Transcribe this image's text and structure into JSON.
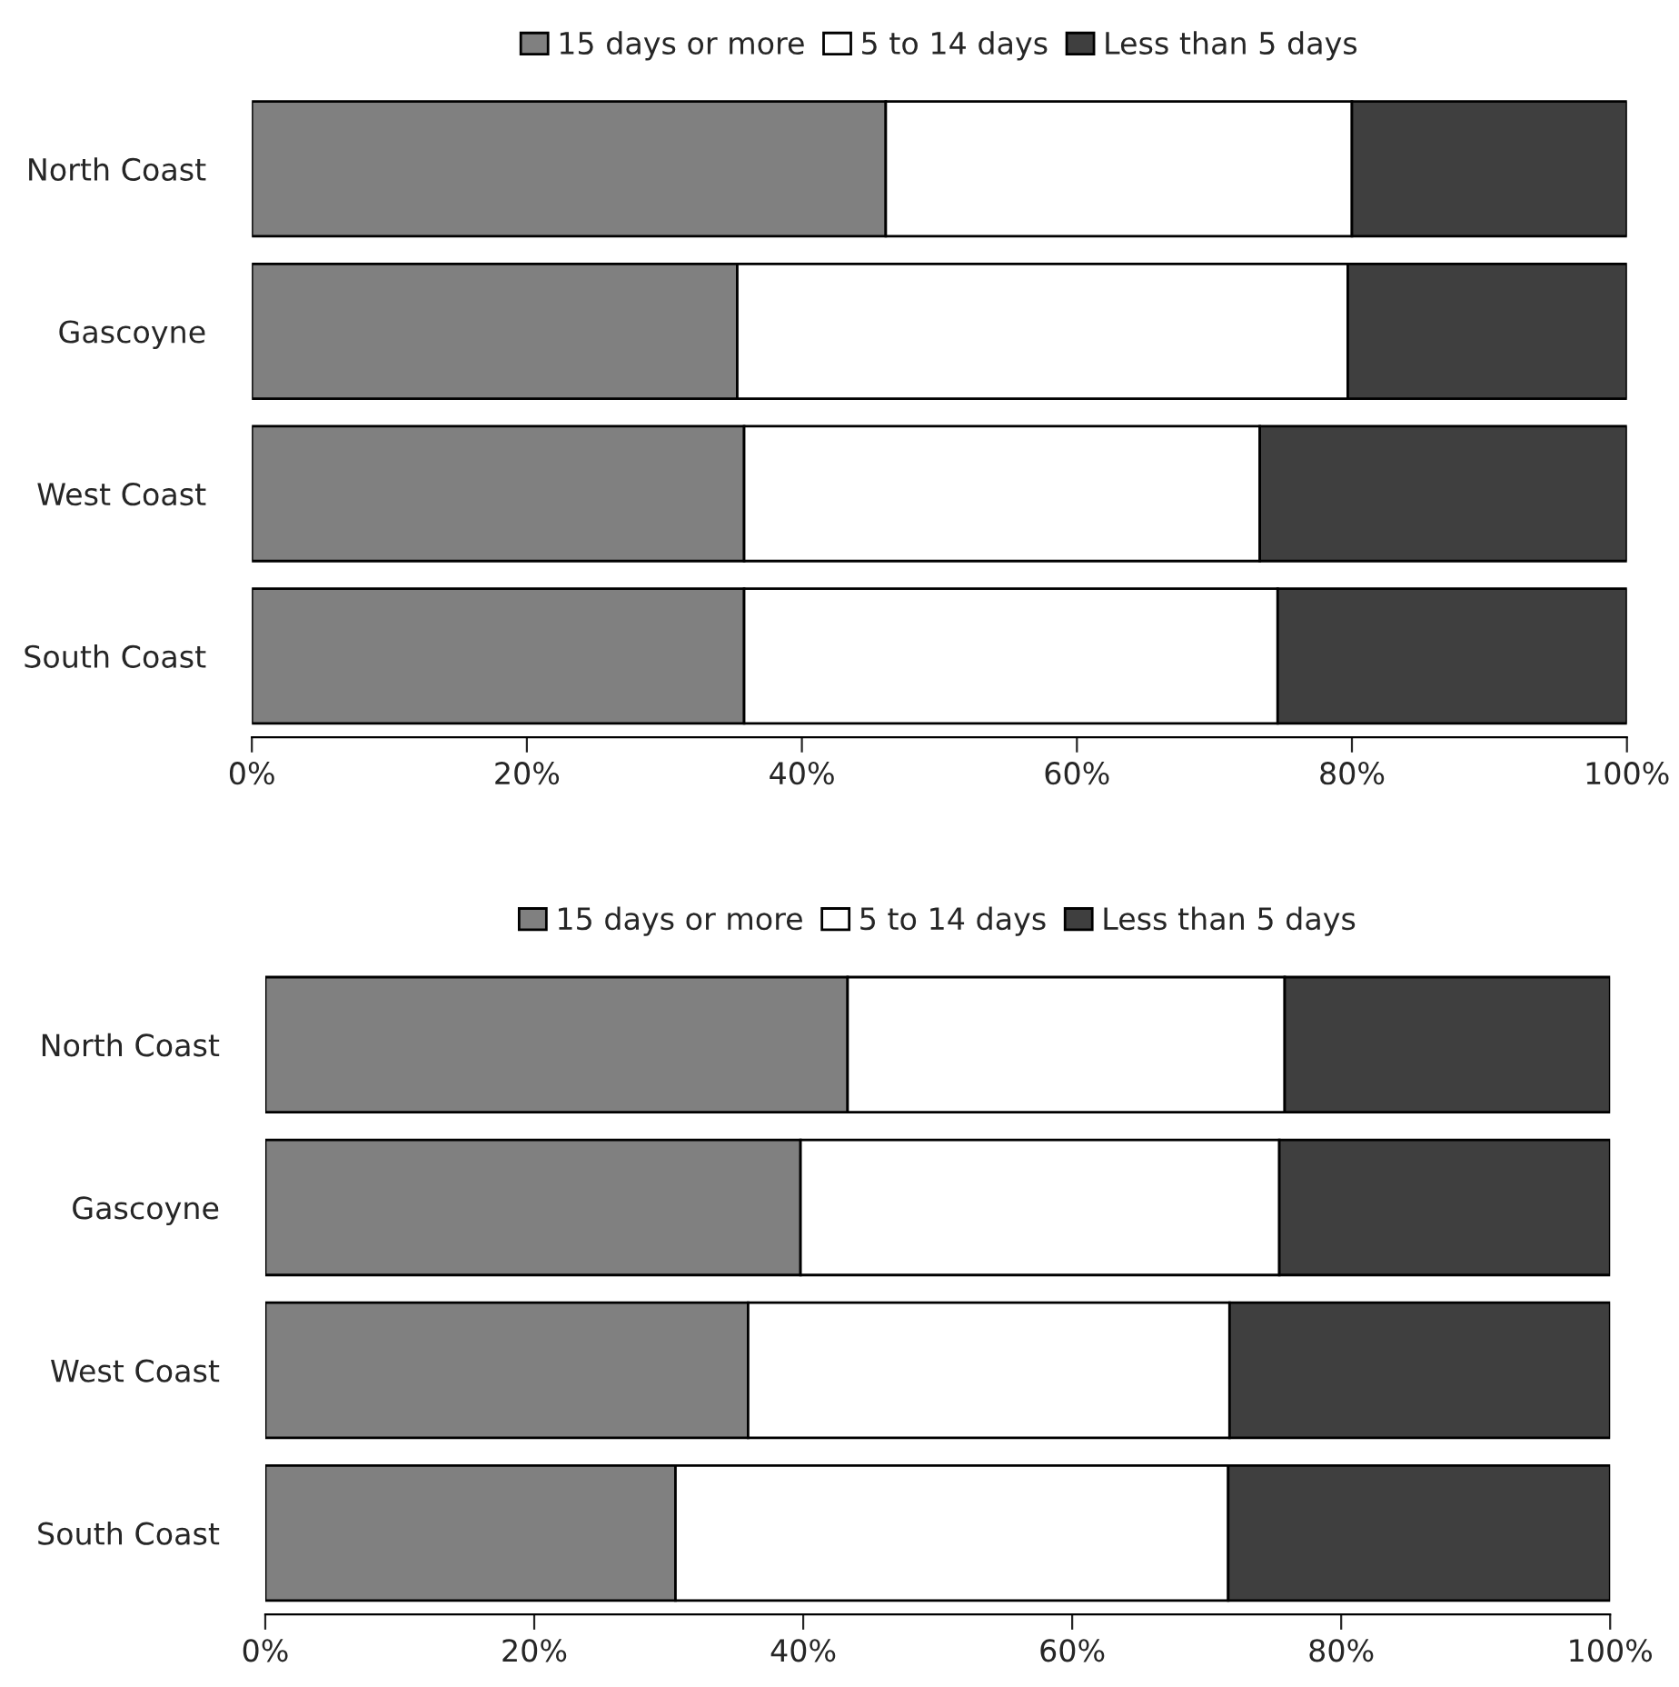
{
  "chart_data": [
    {
      "type": "bar",
      "orientation": "horizontal",
      "stacked": true,
      "categories": [
        "North Coast",
        "Gascoyne",
        "West Coast",
        "South Coast"
      ],
      "series": [
        {
          "name": "15 days or more",
          "color": "#808080",
          "values": [
            46.1,
            35.3,
            35.8,
            35.8
          ]
        },
        {
          "name": "5 to 14 days",
          "color": "#ffffff",
          "values": [
            33.9,
            44.4,
            37.5,
            38.8
          ]
        },
        {
          "name": "Less than 5 days",
          "color": "#3f3f3f",
          "values": [
            20.0,
            20.3,
            26.7,
            25.4
          ]
        }
      ],
      "xlim": [
        0,
        100
      ],
      "xticks": [
        {
          "value": 0,
          "label": "0%"
        },
        {
          "value": 20,
          "label": "20%"
        },
        {
          "value": 40,
          "label": "40%"
        },
        {
          "value": 60,
          "label": "60%"
        },
        {
          "value": 80,
          "label": "80%"
        },
        {
          "value": 100,
          "label": "100%"
        }
      ],
      "legend": "top",
      "grid": false
    },
    {
      "type": "bar",
      "orientation": "horizontal",
      "stacked": true,
      "categories": [
        "North Coast",
        "Gascoyne",
        "West Coast",
        "South Coast"
      ],
      "series": [
        {
          "name": "15 days or more",
          "color": "#808080",
          "values": [
            43.3,
            39.8,
            35.9,
            30.5
          ]
        },
        {
          "name": "5 to 14 days",
          "color": "#ffffff",
          "values": [
            32.5,
            35.6,
            35.8,
            41.1
          ]
        },
        {
          "name": "Less than 5 days",
          "color": "#3f3f3f",
          "values": [
            24.2,
            24.6,
            28.3,
            28.4
          ]
        }
      ],
      "xlim": [
        0,
        100
      ],
      "xticks": [
        {
          "value": 0,
          "label": "0%"
        },
        {
          "value": 20,
          "label": "20%"
        },
        {
          "value": 40,
          "label": "40%"
        },
        {
          "value": 60,
          "label": "60%"
        },
        {
          "value": 80,
          "label": "80%"
        },
        {
          "value": 100,
          "label": "100%"
        }
      ],
      "legend": "top",
      "grid": false
    }
  ]
}
